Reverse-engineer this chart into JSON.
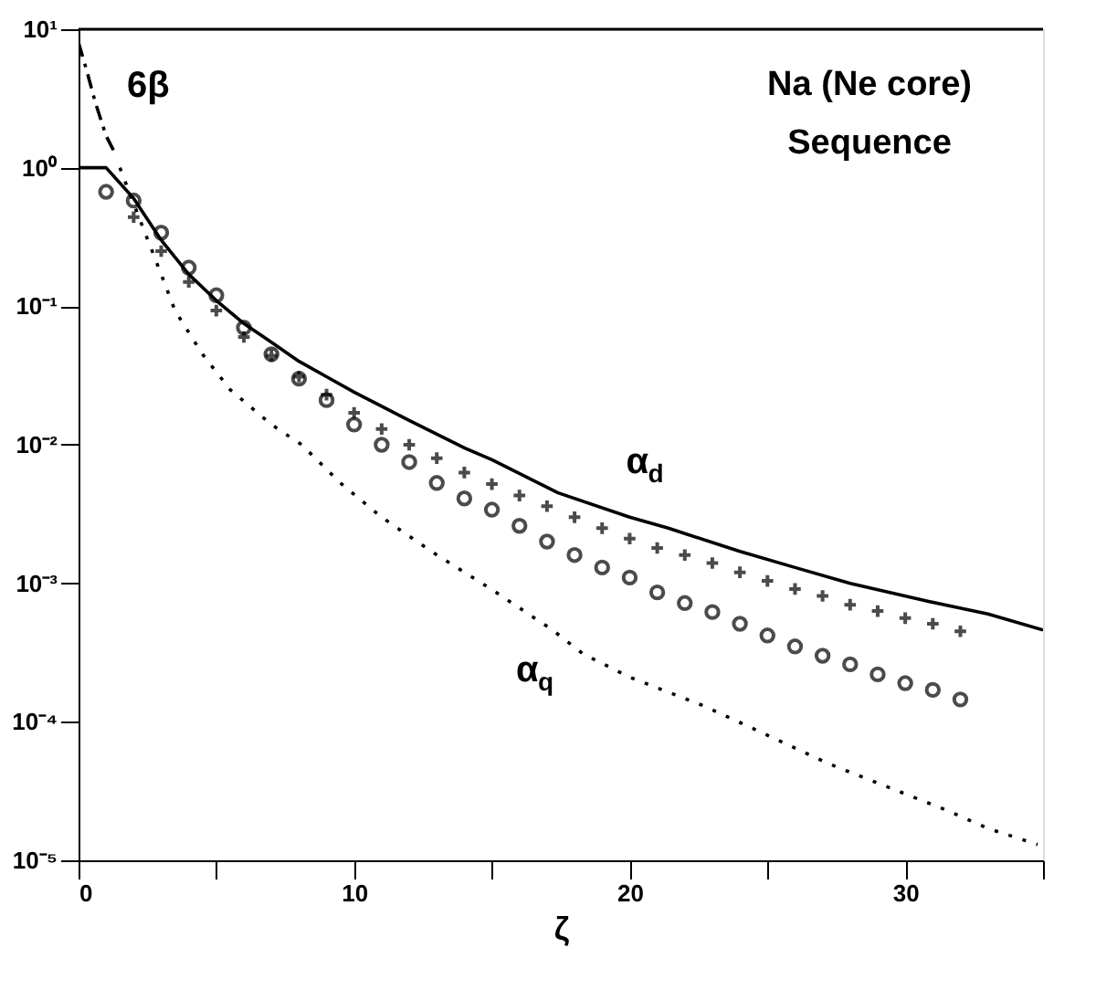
{
  "chart_data": {
    "type": "line",
    "xlabel": "ζ",
    "log": "y",
    "grid": false,
    "xlim": [
      0,
      35
    ],
    "xticks": [
      0,
      {
        "value": 5,
        "label": null
      },
      10,
      {
        "value": 15,
        "label": null
      },
      20,
      {
        "value": 25,
        "label": null
      },
      30,
      {
        "value": 35,
        "label": null
      }
    ],
    "ylim": [
      1e-05,
      10
    ],
    "yticks": [
      {
        "value": 10,
        "label": "10¹"
      },
      {
        "value": 1,
        "label": "10⁰"
      },
      {
        "value": 0.1,
        "label": "10⁻¹"
      },
      {
        "value": 0.01,
        "label": "10⁻²"
      },
      {
        "value": 0.001,
        "label": "10⁻³"
      },
      {
        "value": 0.0001,
        "label": "10⁻⁴"
      },
      {
        "value": 1e-05,
        "label": "10⁻⁵"
      }
    ],
    "series": [
      {
        "type": "line",
        "name": "α$_{d}$",
        "line_style": "solid",
        "color": "#000000",
        "x": [
          0,
          1,
          2,
          3,
          4,
          5,
          6,
          7,
          8,
          9,
          10,
          12,
          14,
          15,
          17.4,
          20,
          21.4,
          24,
          26,
          28,
          30.7,
          33,
          35
        ],
        "values": [
          1,
          1,
          0.6,
          0.3,
          0.17,
          0.11,
          0.075,
          0.055,
          0.04,
          0.031,
          0.024,
          0.015,
          0.0095,
          0.0078,
          0.0045,
          0.003,
          0.0025,
          0.0017,
          0.0013,
          0.001,
          0.00075,
          0.0006,
          0.00046
        ]
      },
      {
        "type": "line",
        "name": "α$_{q}$",
        "line_style": "dotted",
        "color": "#000000",
        "x": [
          1.5,
          2,
          3,
          3.5,
          4.5,
          5.5,
          7,
          8.1,
          9.5,
          11,
          12.8,
          15,
          17.2,
          18.3,
          20,
          22.7,
          25,
          27.2,
          29.5,
          31.5,
          33,
          34.8
        ],
        "values": [
          1,
          0.55,
          0.17,
          0.093,
          0.045,
          0.025,
          0.014,
          0.01,
          0.0053,
          0.003,
          0.0017,
          0.0009,
          0.00046,
          0.00031,
          0.00021,
          0.00013,
          8e-05,
          5e-05,
          3.3e-05,
          2.3e-05,
          1.7e-05,
          1.3e-05
        ]
      },
      {
        "type": "line",
        "name": "6β",
        "line_style": "dashed",
        "color": "#000000",
        "x": [
          0,
          0.3,
          0.6,
          1,
          1.3
        ],
        "values": [
          8,
          5,
          3,
          1.7,
          1.3
        ]
      },
      {
        "type": "scatter",
        "marker": "circle",
        "color": "#000000",
        "x": [
          1,
          2,
          3,
          4,
          5,
          6,
          7,
          8,
          9,
          10,
          11,
          12,
          13,
          14,
          15,
          16,
          17,
          18,
          19,
          20,
          21,
          22,
          23,
          24,
          25,
          26,
          27,
          28,
          29,
          30,
          31,
          32
        ],
        "values": [
          0.67,
          0.58,
          0.34,
          0.19,
          0.12,
          0.07,
          0.045,
          0.03,
          0.021,
          0.014,
          0.01,
          0.0075,
          0.0053,
          0.0041,
          0.0034,
          0.0026,
          0.002,
          0.0016,
          0.0013,
          0.0011,
          0.00086,
          0.00072,
          0.00062,
          0.00051,
          0.00042,
          0.00035,
          0.0003,
          0.00026,
          0.00022,
          0.00019,
          0.00017,
          0.000145
        ]
      },
      {
        "type": "scatter",
        "marker": "cross",
        "color": "#000000",
        "x": [
          2,
          3,
          4,
          5,
          6,
          7,
          8,
          9,
          10,
          11,
          12,
          13,
          14,
          15,
          16,
          17,
          18,
          19,
          20,
          21,
          22,
          23,
          24,
          25,
          26,
          27,
          28,
          29,
          30,
          31,
          32
        ],
        "values": [
          0.44,
          0.25,
          0.15,
          0.093,
          0.06,
          0.044,
          0.031,
          0.023,
          0.017,
          0.013,
          0.01,
          0.008,
          0.0063,
          0.0052,
          0.0043,
          0.0036,
          0.003,
          0.0025,
          0.0021,
          0.0018,
          0.0016,
          0.0014,
          0.0012,
          0.00104,
          0.00091,
          0.00081,
          0.0007,
          0.00063,
          0.00056,
          0.00051,
          0.00045
        ]
      }
    ],
    "annotations": [
      "Na (Ne core)",
      "Sequence"
    ]
  }
}
